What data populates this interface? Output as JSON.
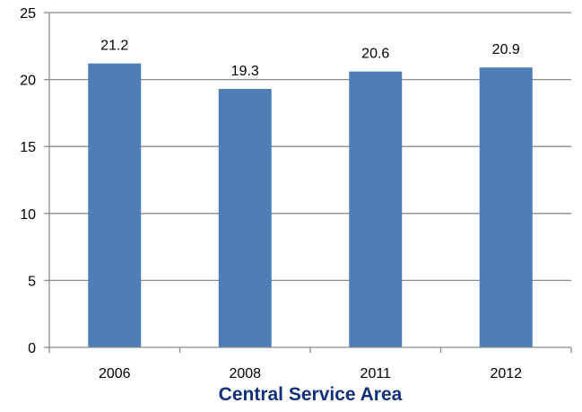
{
  "chart_data": {
    "type": "bar",
    "categories": [
      "2006",
      "2008",
      "2011",
      "2012"
    ],
    "values": [
      21.2,
      19.3,
      20.6,
      20.9
    ],
    "data_labels": [
      "21.2",
      "19.3",
      "20.6",
      "20.9"
    ],
    "title": "",
    "xlabel": "Central Service Area",
    "ylabel": "",
    "ylim": [
      0,
      25
    ],
    "yticks": [
      "0",
      "5",
      "10",
      "15",
      "20",
      "25"
    ],
    "grid": true,
    "legend": "none",
    "colors": {
      "bar": "#4F7EB6",
      "grid": "#8C8C8C",
      "axis": "#8C8C8C",
      "xlabel": "#13307A"
    }
  }
}
